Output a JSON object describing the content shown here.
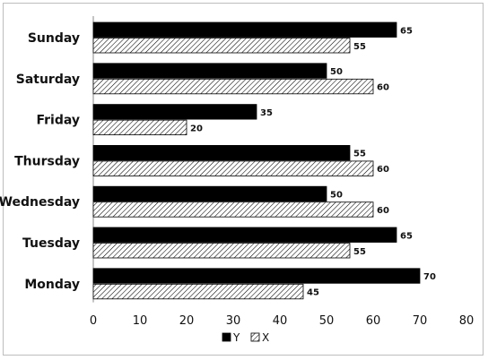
{
  "chart_data": {
    "type": "bar",
    "orientation": "horizontal",
    "categories": [
      "Sunday",
      "Saturday",
      "Friday",
      "Thursday",
      "Wednesday",
      "Tuesday",
      "Monday"
    ],
    "series": [
      {
        "name": "Y",
        "values": [
          65,
          50,
          35,
          55,
          50,
          65,
          70
        ],
        "color": "#000000",
        "pattern": "solid"
      },
      {
        "name": "X",
        "values": [
          55,
          60,
          20,
          60,
          60,
          55,
          45
        ],
        "color": "#ffffff",
        "pattern": "diagonal-hatch"
      }
    ],
    "x_ticks": [
      "0",
      "10",
      "20",
      "30",
      "40",
      "50",
      "60",
      "70",
      "80"
    ],
    "xlim": [
      0,
      80
    ],
    "grid": false,
    "legend": {
      "position": "bottom",
      "entries": [
        "Y",
        "X"
      ]
    },
    "data_labels": true,
    "title": "",
    "xlabel": "",
    "ylabel": ""
  }
}
